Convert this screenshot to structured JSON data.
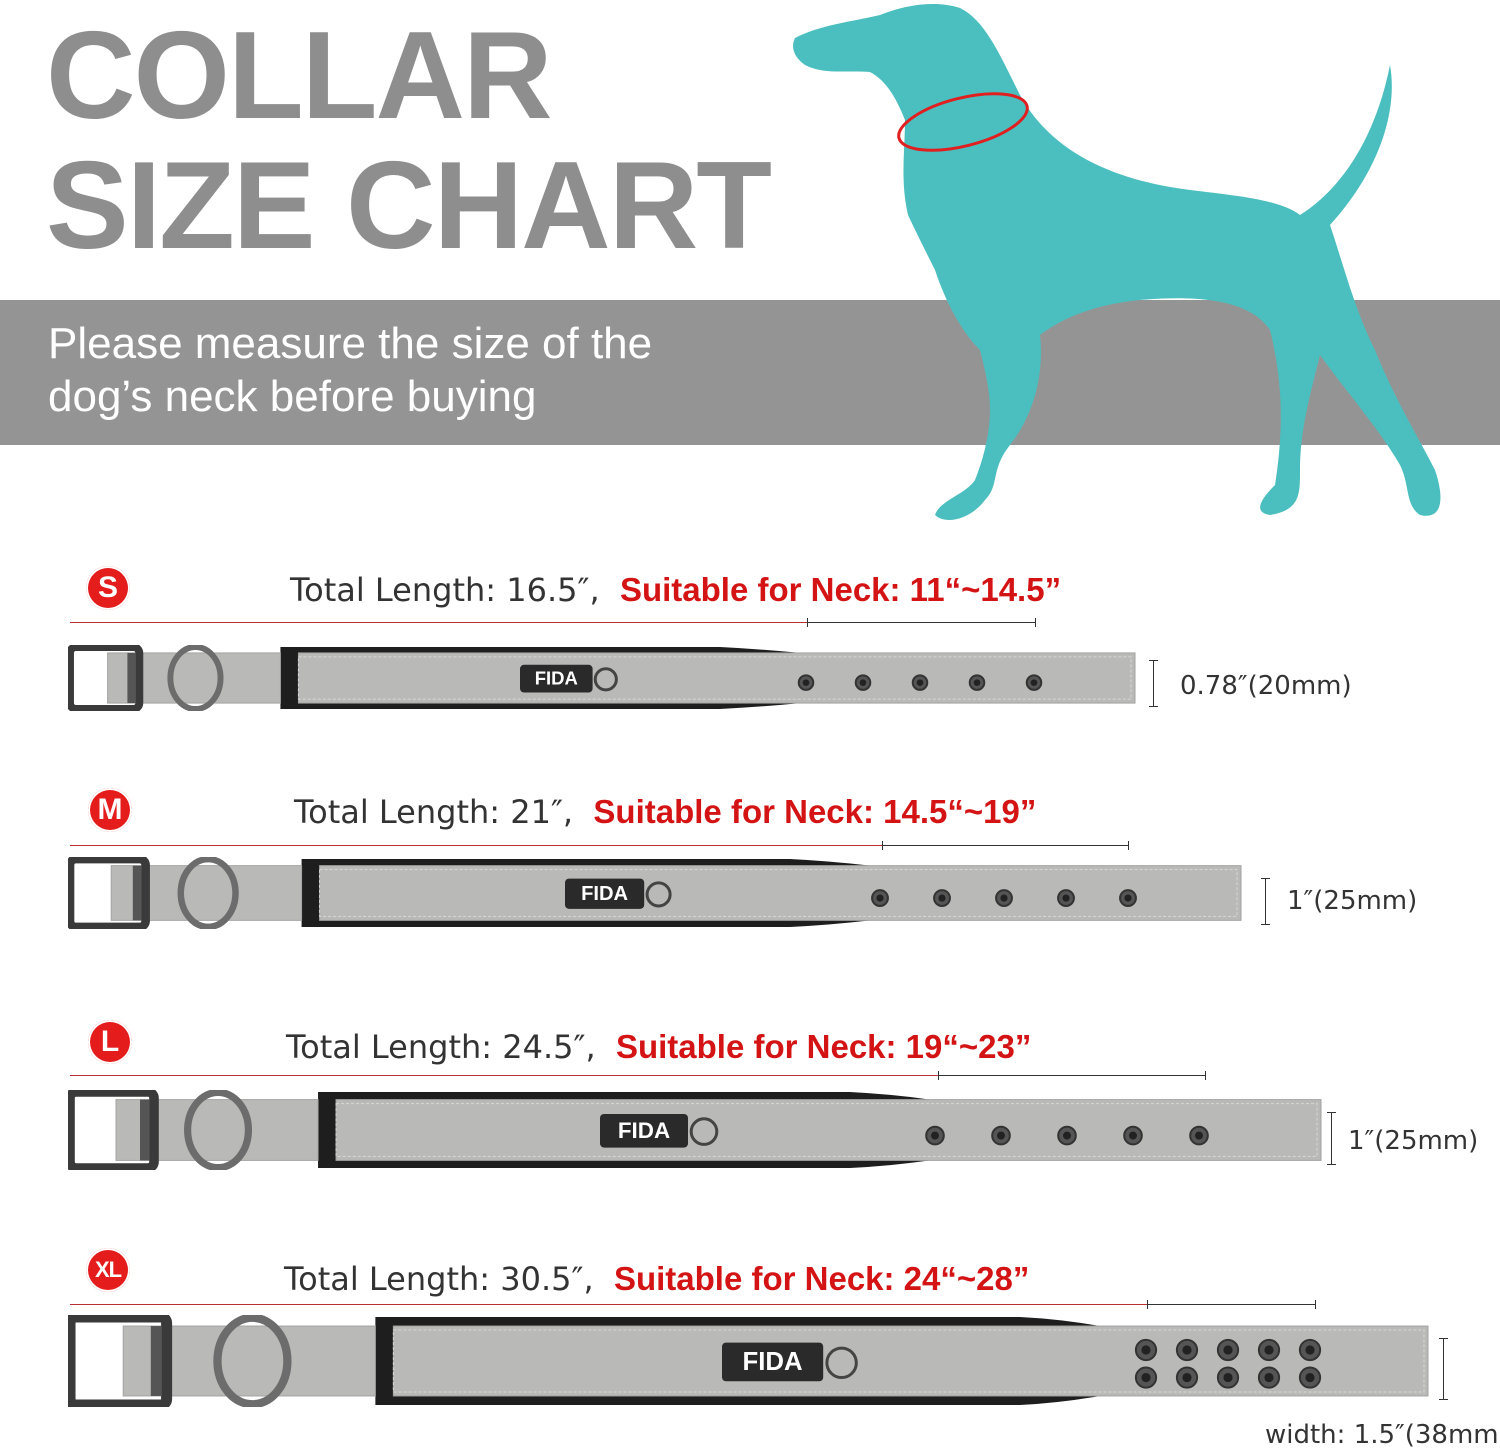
{
  "header": {
    "title_line1": "COLLAR",
    "title_line2": "SIZE CHART",
    "subtitle_line1": "Please measure the size of the",
    "subtitle_line2": "dog’s neck before buying"
  },
  "colors": {
    "title": "#8e8e8e",
    "band": "#949494",
    "dog": "#4bbfbf",
    "accent_red": "#d41414",
    "strap": "#b9b9b7"
  },
  "brand_tag": "FIDA",
  "sizes": [
    {
      "badge": "S",
      "total_length": "Total Length: 16.5″,",
      "neck": "Suitable for Neck: 11“~14.5”",
      "width": "0.78″(20mm)"
    },
    {
      "badge": "M",
      "total_length": "Total Length: 21″,",
      "neck": "Suitable for Neck: 14.5“~19”",
      "width": "1″(25mm)"
    },
    {
      "badge": "L",
      "total_length": "Total Length: 24.5″,",
      "neck": "Suitable for Neck: 19“~23”",
      "width": "1″(25mm)"
    },
    {
      "badge": "XL",
      "total_length": "Total Length: 30.5″,",
      "neck": "Suitable for Neck: 24“~28”",
      "width": "width: 1.5″(38mm)"
    }
  ]
}
